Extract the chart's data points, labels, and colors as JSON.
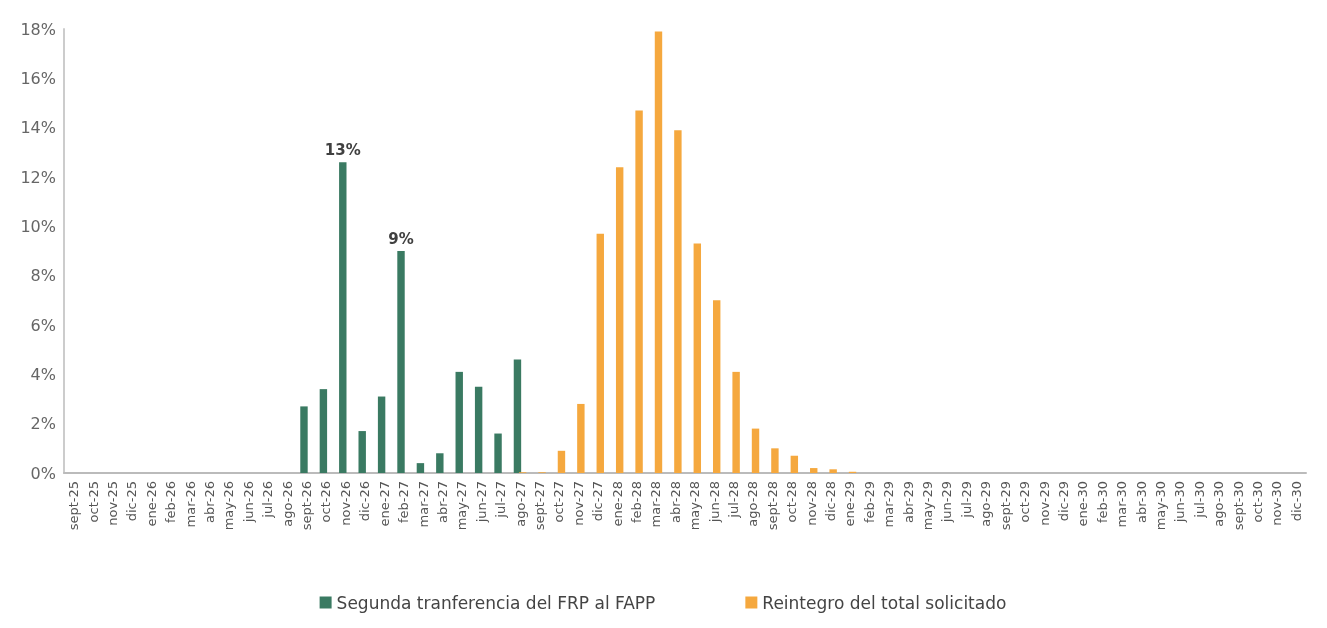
{
  "chart_data": {
    "type": "bar",
    "categories": [
      "sept-25",
      "oct-25",
      "nov-25",
      "dic-25",
      "ene-26",
      "feb-26",
      "mar-26",
      "abr-26",
      "may-26",
      "jun-26",
      "jul-26",
      "ago-26",
      "sept-26",
      "oct-26",
      "nov-26",
      "dic-26",
      "ene-27",
      "feb-27",
      "mar-27",
      "abr-27",
      "may-27",
      "jun-27",
      "jul-27",
      "ago-27",
      "sept-27",
      "oct-27",
      "nov-27",
      "dic-27",
      "ene-28",
      "feb-28",
      "mar-28",
      "abr-28",
      "may-28",
      "jun-28",
      "jul-28",
      "ago-28",
      "sept-28",
      "oct-28",
      "nov-28",
      "dic-28",
      "ene-29",
      "feb-29",
      "mar-29",
      "abr-29",
      "may-29",
      "jun-29",
      "jul-29",
      "ago-29",
      "sept-29",
      "oct-29",
      "nov-29",
      "dic-29",
      "ene-30",
      "feb-30",
      "mar-30",
      "abr-30",
      "may-30",
      "jun-30",
      "jul-30",
      "ago-30",
      "sept-30",
      "oct-30",
      "nov-30",
      "dic-30"
    ],
    "series": [
      {
        "name": "Segunda tranferencia del FRP al FAPP",
        "color": "#3a7a62",
        "values": [
          0,
          0,
          0,
          0,
          0,
          0,
          0,
          0,
          0,
          0,
          0,
          0,
          2.7,
          3.4,
          12.6,
          1.7,
          3.1,
          9.0,
          0.4,
          0.8,
          4.1,
          3.5,
          1.6,
          4.6,
          0,
          0,
          0,
          0,
          0,
          0,
          0,
          0,
          0,
          0,
          0,
          0,
          0,
          0,
          0,
          0,
          0,
          0,
          0,
          0,
          0,
          0,
          0,
          0,
          0,
          0,
          0,
          0,
          0,
          0,
          0,
          0,
          0,
          0,
          0,
          0,
          0,
          0,
          0,
          0
        ],
        "value_labels": [
          null,
          null,
          null,
          null,
          null,
          null,
          null,
          null,
          null,
          null,
          null,
          null,
          null,
          null,
          "13%",
          null,
          null,
          "9%",
          null,
          null,
          null,
          null,
          null,
          null,
          null,
          null,
          null,
          null,
          null,
          null,
          null,
          null,
          null,
          null,
          null,
          null,
          null,
          null,
          null,
          null,
          null,
          null,
          null,
          null,
          null,
          null,
          null,
          null,
          null,
          null,
          null,
          null,
          null,
          null,
          null,
          null,
          null,
          null,
          null,
          null,
          null,
          null,
          null,
          null
        ]
      },
      {
        "name": "Reintegro del total solicitado",
        "color": "#f5a83e",
        "values": [
          0,
          0,
          0,
          0,
          0,
          0,
          0,
          0,
          0,
          0,
          0,
          0,
          0,
          0,
          0,
          0,
          0,
          0,
          0,
          0,
          0,
          0,
          0,
          0.03,
          0.03,
          0.9,
          2.8,
          9.7,
          12.4,
          14.7,
          17.9,
          13.9,
          9.3,
          7.0,
          4.1,
          1.8,
          1.0,
          0.7,
          0.2,
          0.15,
          0.05,
          0,
          0,
          0,
          0,
          0,
          0,
          0,
          0,
          0,
          0,
          0,
          0,
          0,
          0,
          0,
          0,
          0,
          0,
          0,
          0,
          0,
          0,
          0
        ]
      }
    ],
    "ylim": [
      0,
      18
    ],
    "yticks": [
      {
        "value": 0,
        "label": "0%"
      },
      {
        "value": 2,
        "label": "2%"
      },
      {
        "value": 4,
        "label": "4%"
      },
      {
        "value": 6,
        "label": "6%"
      },
      {
        "value": 8,
        "label": "8%"
      },
      {
        "value": 10,
        "label": "10%"
      },
      {
        "value": 12,
        "label": "12%"
      },
      {
        "value": 14,
        "label": "14%"
      },
      {
        "value": 16,
        "label": "16%"
      },
      {
        "value": 18,
        "label": "18%"
      }
    ],
    "grid": false,
    "legend": "bottom"
  }
}
